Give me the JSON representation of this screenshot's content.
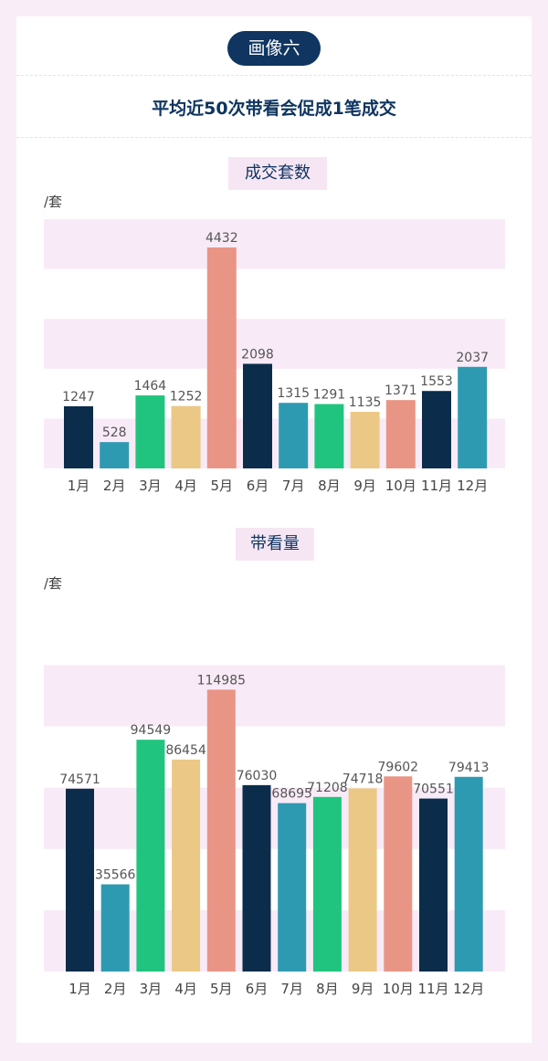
{
  "badge": "画像六",
  "main_title": "平均近50次带看会促成1笔成交",
  "colors": {
    "navy": "#0b2d4b",
    "teal": "#2e9ab2",
    "green": "#21c47e",
    "sand": "#ebc886",
    "salmon": "#e99586",
    "band": "#f8ebf7",
    "title": "#0f3560"
  },
  "chart_data": [
    {
      "type": "bar",
      "title": "成交套数",
      "ylabel": "/套",
      "categories": [
        "1月",
        "2月",
        "3月",
        "4月",
        "5月",
        "6月",
        "7月",
        "8月",
        "9月",
        "10月",
        "11月",
        "12月"
      ],
      "values": [
        1247,
        528,
        1464,
        1252,
        4432,
        2098,
        1315,
        1291,
        1135,
        1371,
        1553,
        2037
      ],
      "value_labels": [
        "1247",
        "528",
        "1464",
        "1252",
        "4432",
        "2098",
        "1315",
        "1291",
        "1135",
        "1371",
        "1553",
        "2037"
      ],
      "ylim": [
        0,
        5000
      ],
      "grid": "alternating horizontal bands",
      "bar_colors": [
        "#0b2d4b",
        "#2e9ab2",
        "#21c47e",
        "#ebc886",
        "#e99586",
        "#0b2d4b",
        "#2e9ab2",
        "#21c47e",
        "#ebc886",
        "#e99586",
        "#0b2d4b",
        "#2e9ab2"
      ]
    },
    {
      "type": "bar",
      "title": "带看量",
      "ylabel": "/套",
      "categories": [
        "1月",
        "2月",
        "3月",
        "4月",
        "5月",
        "6月",
        "7月",
        "8月",
        "9月",
        "10月",
        "11月",
        "12月"
      ],
      "values": [
        74571,
        35566,
        94549,
        86454,
        114985,
        76030,
        68695,
        71208,
        74718,
        79602,
        70551,
        79413
      ],
      "value_labels": [
        "74571",
        "35566",
        "94549",
        "86454",
        "114985",
        "76030",
        "68695",
        "71208",
        "74718",
        "79602",
        "70551",
        "79413"
      ],
      "ylim": [
        0,
        125000
      ],
      "grid": "alternating horizontal bands",
      "bar_colors": [
        "#0b2d4b",
        "#2e9ab2",
        "#21c47e",
        "#ebc886",
        "#e99586",
        "#0b2d4b",
        "#2e9ab2",
        "#21c47e",
        "#ebc886",
        "#e99586",
        "#0b2d4b",
        "#2e9ab2"
      ]
    }
  ]
}
